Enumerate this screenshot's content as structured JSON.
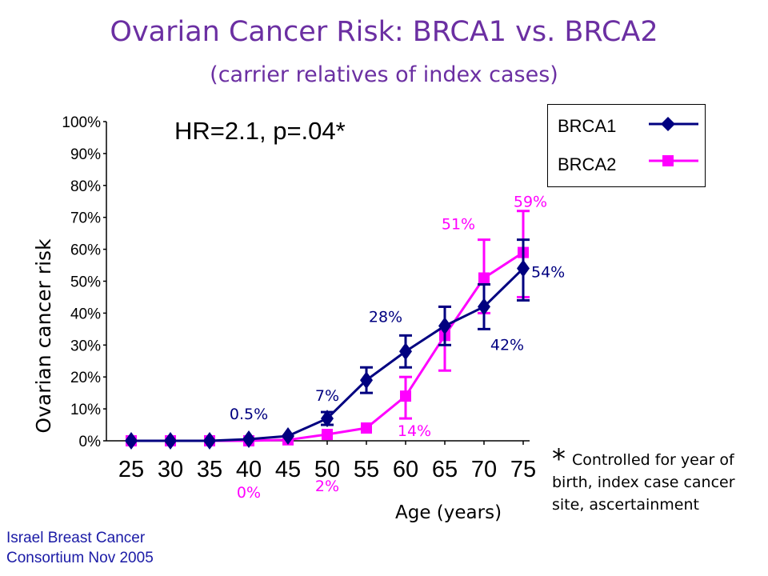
{
  "title": "Ovarian Cancer Risk: BRCA1 vs. BRCA2",
  "subtitle": "(carrier relatives of index cases)",
  "hr_note": "HR=2.1, p=.04*",
  "footnote_star": "*",
  "footnote_text": "Controlled for year of birth, index case cancer site, ascertainment",
  "source": "Israel Breast Cancer Consortium Nov 2005",
  "colors": {
    "brca1": "#000080",
    "brca2": "#ff00ff",
    "title": "#6b2fa2"
  },
  "chart_data": {
    "type": "line",
    "title": "Ovarian Cancer Risk: BRCA1 vs. BRCA2",
    "xlabel": "Age (years)",
    "ylabel": "Ovarian cancer risk",
    "x": [
      25,
      30,
      35,
      40,
      45,
      50,
      55,
      60,
      65,
      70,
      75
    ],
    "x_ticks": [
      "25",
      "30",
      "35",
      "40",
      "45",
      "50",
      "55",
      "60",
      "65",
      "70",
      "75"
    ],
    "y_ticks": [
      "0%",
      "10%",
      "20%",
      "30%",
      "40%",
      "50%",
      "60%",
      "70%",
      "80%",
      "90%",
      "100%"
    ],
    "ylim": [
      0,
      100
    ],
    "grid": false,
    "legend_position": "top-right",
    "series": [
      {
        "name": "BRCA1",
        "color": "#000080",
        "marker": "diamond",
        "values": [
          0,
          0,
          0,
          0.5,
          1.5,
          7,
          19,
          28,
          36,
          42,
          54
        ],
        "error_low": [
          null,
          null,
          null,
          null,
          null,
          5,
          15,
          23,
          30,
          35,
          44
        ],
        "error_high": [
          null,
          null,
          null,
          null,
          null,
          9,
          23,
          33,
          42,
          49,
          63
        ]
      },
      {
        "name": "BRCA2",
        "color": "#ff00ff",
        "marker": "square",
        "values": [
          0,
          0,
          0,
          0,
          0.3,
          2,
          4,
          14,
          33,
          51,
          59
        ],
        "error_low": [
          null,
          null,
          null,
          null,
          null,
          null,
          null,
          7,
          22,
          40,
          45
        ],
        "error_high": [
          null,
          null,
          null,
          null,
          null,
          null,
          null,
          20,
          42,
          63,
          72
        ]
      }
    ],
    "annotations": [
      {
        "text": "0.5%",
        "series": "BRCA1",
        "x": 40
      },
      {
        "text": "7%",
        "series": "BRCA1",
        "x": 50
      },
      {
        "text": "28%",
        "series": "BRCA1",
        "x": 60
      },
      {
        "text": "42%",
        "series": "BRCA1",
        "x": 70
      },
      {
        "text": "54%",
        "series": "BRCA1",
        "x": 75
      },
      {
        "text": "0%",
        "series": "BRCA2",
        "x": 40
      },
      {
        "text": "2%",
        "series": "BRCA2",
        "x": 50
      },
      {
        "text": "14%",
        "series": "BRCA2",
        "x": 60
      },
      {
        "text": "51%",
        "series": "BRCA2",
        "x": 70
      },
      {
        "text": "59%",
        "series": "BRCA2",
        "x": 75
      }
    ]
  }
}
